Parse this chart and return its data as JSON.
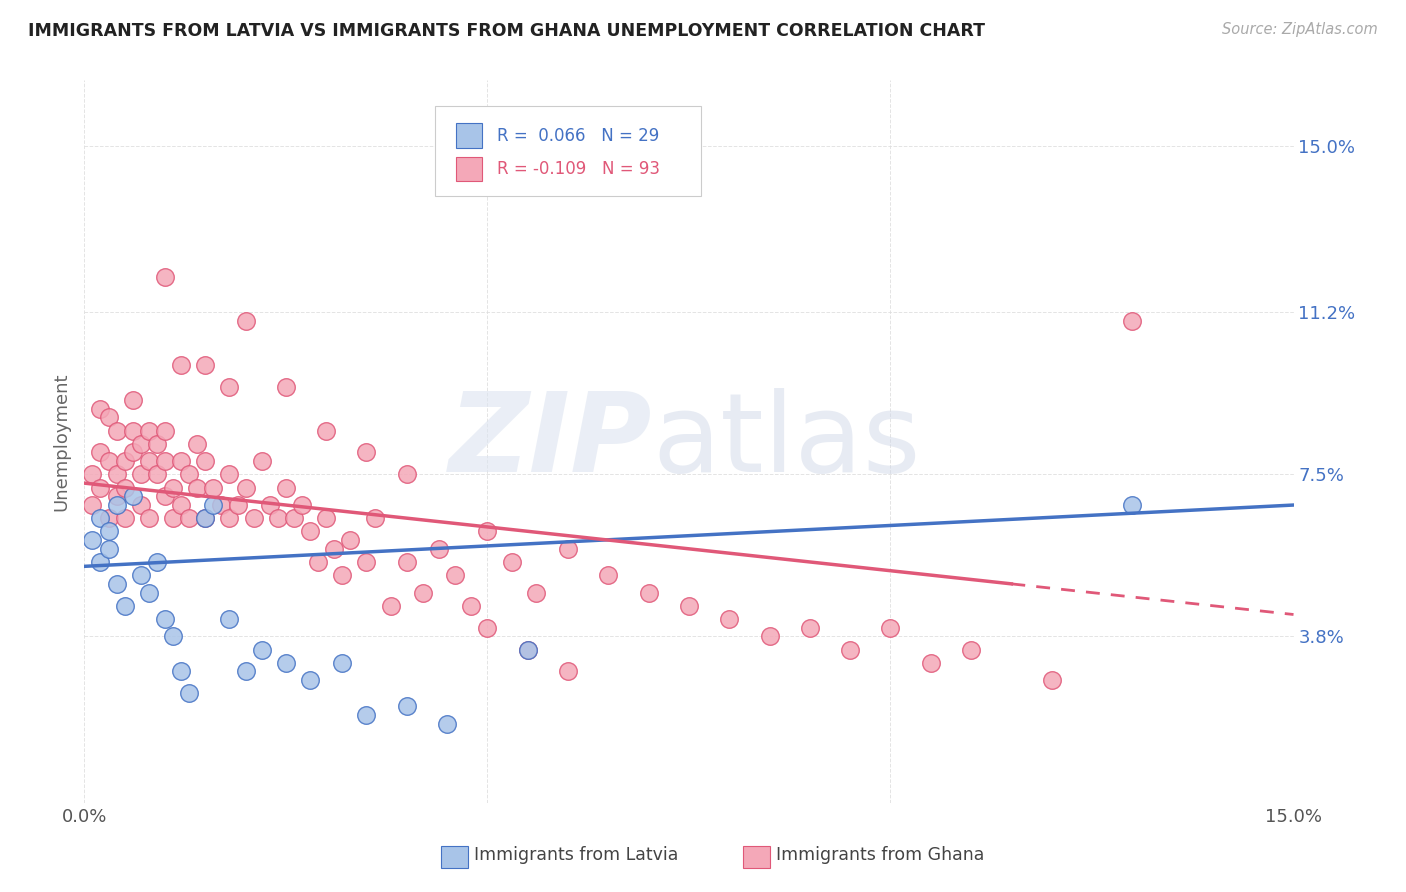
{
  "title": "IMMIGRANTS FROM LATVIA VS IMMIGRANTS FROM GHANA UNEMPLOYMENT CORRELATION CHART",
  "source": "Source: ZipAtlas.com",
  "ylabel": "Unemployment",
  "ytick_labels": [
    "15.0%",
    "11.2%",
    "7.5%",
    "3.8%"
  ],
  "ytick_values": [
    0.15,
    0.112,
    0.075,
    0.038
  ],
  "xlim": [
    0.0,
    0.15
  ],
  "ylim": [
    0.0,
    0.165
  ],
  "color_latvia": "#a8c4e8",
  "color_ghana": "#f4a8b8",
  "color_line_latvia": "#4472c4",
  "color_line_ghana": "#e05878",
  "latvia_r": 0.066,
  "latvia_n": 29,
  "ghana_r": -0.109,
  "ghana_n": 93,
  "latvia_scatter_x": [
    0.001,
    0.002,
    0.002,
    0.003,
    0.003,
    0.004,
    0.004,
    0.005,
    0.006,
    0.007,
    0.008,
    0.009,
    0.01,
    0.011,
    0.012,
    0.013,
    0.015,
    0.016,
    0.018,
    0.02,
    0.022,
    0.025,
    0.028,
    0.032,
    0.035,
    0.04,
    0.045,
    0.055,
    0.13
  ],
  "latvia_scatter_y": [
    0.06,
    0.055,
    0.065,
    0.058,
    0.062,
    0.05,
    0.068,
    0.045,
    0.07,
    0.052,
    0.048,
    0.055,
    0.042,
    0.038,
    0.03,
    0.025,
    0.065,
    0.068,
    0.042,
    0.03,
    0.035,
    0.032,
    0.028,
    0.032,
    0.02,
    0.022,
    0.018,
    0.035,
    0.068
  ],
  "ghana_scatter_x": [
    0.001,
    0.001,
    0.002,
    0.002,
    0.002,
    0.003,
    0.003,
    0.003,
    0.004,
    0.004,
    0.004,
    0.005,
    0.005,
    0.005,
    0.006,
    0.006,
    0.006,
    0.007,
    0.007,
    0.007,
    0.008,
    0.008,
    0.008,
    0.009,
    0.009,
    0.01,
    0.01,
    0.01,
    0.011,
    0.011,
    0.012,
    0.012,
    0.013,
    0.013,
    0.014,
    0.014,
    0.015,
    0.015,
    0.016,
    0.017,
    0.018,
    0.018,
    0.019,
    0.02,
    0.021,
    0.022,
    0.023,
    0.024,
    0.025,
    0.026,
    0.027,
    0.028,
    0.029,
    0.03,
    0.031,
    0.032,
    0.033,
    0.035,
    0.036,
    0.038,
    0.04,
    0.042,
    0.044,
    0.046,
    0.048,
    0.05,
    0.053,
    0.056,
    0.06,
    0.065,
    0.07,
    0.075,
    0.08,
    0.085,
    0.09,
    0.095,
    0.1,
    0.105,
    0.11,
    0.12,
    0.13,
    0.01,
    0.012,
    0.015,
    0.018,
    0.02,
    0.025,
    0.03,
    0.035,
    0.04,
    0.05,
    0.055,
    0.06
  ],
  "ghana_scatter_y": [
    0.068,
    0.075,
    0.072,
    0.08,
    0.09,
    0.065,
    0.078,
    0.088,
    0.07,
    0.075,
    0.085,
    0.072,
    0.078,
    0.065,
    0.08,
    0.085,
    0.092,
    0.075,
    0.082,
    0.068,
    0.078,
    0.085,
    0.065,
    0.075,
    0.082,
    0.07,
    0.078,
    0.085,
    0.065,
    0.072,
    0.078,
    0.068,
    0.075,
    0.065,
    0.072,
    0.082,
    0.065,
    0.078,
    0.072,
    0.068,
    0.065,
    0.075,
    0.068,
    0.072,
    0.065,
    0.078,
    0.068,
    0.065,
    0.072,
    0.065,
    0.068,
    0.062,
    0.055,
    0.065,
    0.058,
    0.052,
    0.06,
    0.055,
    0.065,
    0.045,
    0.055,
    0.048,
    0.058,
    0.052,
    0.045,
    0.062,
    0.055,
    0.048,
    0.058,
    0.052,
    0.048,
    0.045,
    0.042,
    0.038,
    0.04,
    0.035,
    0.04,
    0.032,
    0.035,
    0.028,
    0.11,
    0.12,
    0.1,
    0.1,
    0.095,
    0.11,
    0.095,
    0.085,
    0.08,
    0.075,
    0.04,
    0.035,
    0.03
  ]
}
